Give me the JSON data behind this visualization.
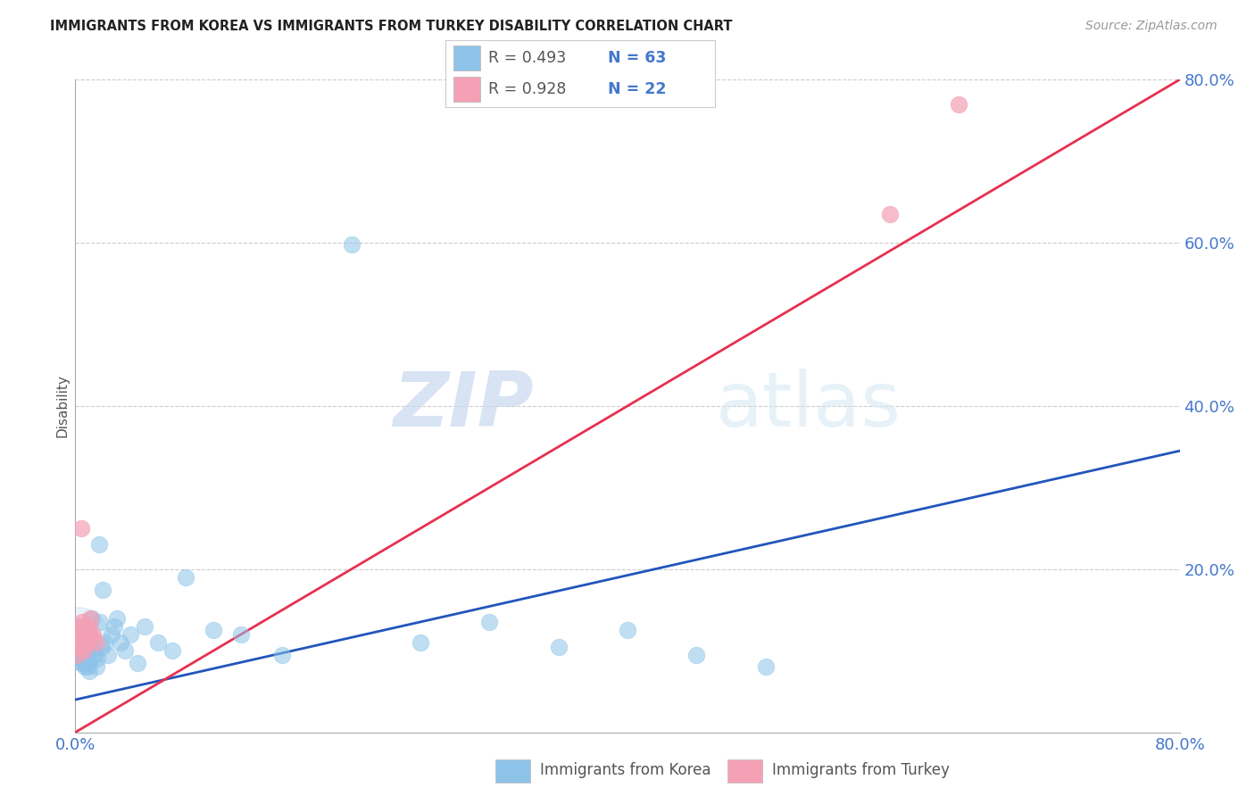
{
  "title": "IMMIGRANTS FROM KOREA VS IMMIGRANTS FROM TURKEY DISABILITY CORRELATION CHART",
  "source": "Source: ZipAtlas.com",
  "ylabel": "Disability",
  "xlim": [
    0.0,
    0.8
  ],
  "ylim": [
    0.0,
    0.8
  ],
  "korea_color": "#8DC3E8",
  "turkey_color": "#F4A0B5",
  "korea_line_color": "#2255BB",
  "turkey_line_color": "#E83050",
  "korea_R": 0.493,
  "korea_N": 63,
  "turkey_R": 0.928,
  "turkey_N": 22,
  "legend_korea": "Immigrants from Korea",
  "legend_turkey": "Immigrants from Turkey",
  "watermark_zip": "ZIP",
  "watermark_atlas": "atlas",
  "tick_color": "#4477CC",
  "korea_line_start_y": 0.04,
  "korea_line_end_y": 0.345,
  "turkey_line_start_y": 0.0,
  "turkey_line_end_y": 0.8,
  "korea_x": [
    0.001,
    0.001,
    0.001,
    0.002,
    0.002,
    0.002,
    0.002,
    0.003,
    0.003,
    0.003,
    0.003,
    0.004,
    0.004,
    0.004,
    0.004,
    0.005,
    0.005,
    0.005,
    0.006,
    0.006,
    0.006,
    0.007,
    0.007,
    0.007,
    0.008,
    0.008,
    0.009,
    0.009,
    0.01,
    0.01,
    0.011,
    0.012,
    0.013,
    0.014,
    0.015,
    0.016,
    0.017,
    0.018,
    0.019,
    0.02,
    0.022,
    0.024,
    0.026,
    0.028,
    0.03,
    0.033,
    0.036,
    0.04,
    0.045,
    0.05,
    0.06,
    0.07,
    0.08,
    0.1,
    0.12,
    0.15,
    0.2,
    0.25,
    0.3,
    0.35,
    0.4,
    0.45,
    0.5
  ],
  "korea_y": [
    0.13,
    0.12,
    0.11,
    0.125,
    0.115,
    0.105,
    0.095,
    0.12,
    0.11,
    0.1,
    0.09,
    0.115,
    0.105,
    0.095,
    0.085,
    0.11,
    0.1,
    0.09,
    0.105,
    0.095,
    0.085,
    0.1,
    0.09,
    0.08,
    0.095,
    0.085,
    0.09,
    0.08,
    0.085,
    0.075,
    0.115,
    0.14,
    0.1,
    0.095,
    0.08,
    0.09,
    0.23,
    0.135,
    0.105,
    0.175,
    0.11,
    0.095,
    0.12,
    0.13,
    0.14,
    0.11,
    0.1,
    0.12,
    0.085,
    0.13,
    0.11,
    0.1,
    0.19,
    0.125,
    0.12,
    0.095,
    0.598,
    0.11,
    0.135,
    0.105,
    0.125,
    0.095,
    0.08
  ],
  "turkey_x": [
    0.001,
    0.001,
    0.002,
    0.002,
    0.003,
    0.003,
    0.004,
    0.004,
    0.005,
    0.005,
    0.006,
    0.006,
    0.007,
    0.008,
    0.009,
    0.01,
    0.011,
    0.012,
    0.013,
    0.015,
    0.59,
    0.64
  ],
  "turkey_y": [
    0.11,
    0.095,
    0.125,
    0.105,
    0.13,
    0.115,
    0.25,
    0.12,
    0.135,
    0.105,
    0.12,
    0.1,
    0.115,
    0.11,
    0.125,
    0.13,
    0.14,
    0.115,
    0.12,
    0.11,
    0.635,
    0.77
  ]
}
